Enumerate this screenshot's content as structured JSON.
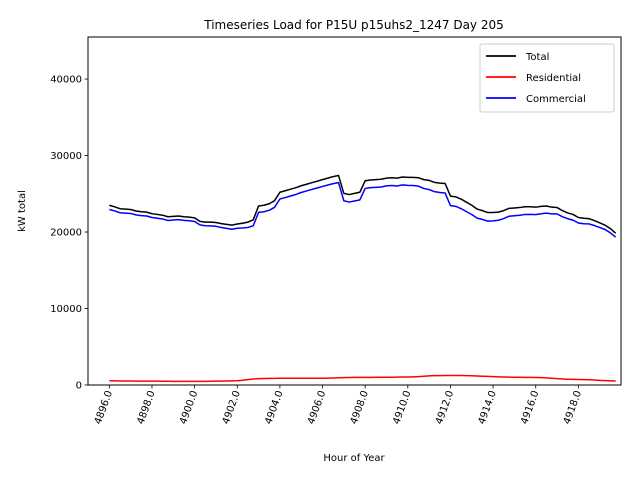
{
  "chart_data": {
    "type": "line",
    "title": "Timeseries Load for P15U p15uhs2_1247  Day 205",
    "xlabel": "Hour of Year",
    "ylabel": "kW total",
    "xlim": [
      4895.0,
      4920.0
    ],
    "ylim": [
      0,
      45500
    ],
    "xticks": [
      4896,
      4898,
      4900,
      4902,
      4904,
      4906,
      4908,
      4910,
      4912,
      4914,
      4916,
      4918
    ],
    "xtick_labels": [
      "4896.0",
      "4898.0",
      "4900.0",
      "4902.0",
      "4904.0",
      "4906.0",
      "4908.0",
      "4910.0",
      "4912.0",
      "4914.0",
      "4916.0",
      "4918.0"
    ],
    "yticks": [
      0,
      10000,
      20000,
      30000,
      40000
    ],
    "ytick_labels": [
      "0",
      "10000",
      "20000",
      "30000",
      "40000"
    ],
    "legend_position": "top-right",
    "x": [
      4896.0,
      4896.25,
      4896.5,
      4896.75,
      4897.0,
      4897.25,
      4897.5,
      4897.75,
      4898.0,
      4898.25,
      4898.5,
      4898.75,
      4899.0,
      4899.25,
      4899.5,
      4899.75,
      4900.0,
      4900.25,
      4900.5,
      4900.75,
      4901.0,
      4901.25,
      4901.5,
      4901.75,
      4902.0,
      4902.25,
      4902.5,
      4902.75,
      4903.0,
      4903.25,
      4903.5,
      4903.75,
      4904.0,
      4904.25,
      4904.5,
      4904.75,
      4905.0,
      4905.25,
      4905.5,
      4905.75,
      4906.0,
      4906.25,
      4906.5,
      4906.75,
      4907.0,
      4907.25,
      4907.5,
      4907.75,
      4908.0,
      4908.25,
      4908.5,
      4908.75,
      4909.0,
      4909.25,
      4909.5,
      4909.75,
      4910.0,
      4910.25,
      4910.5,
      4910.75,
      4911.0,
      4911.25,
      4911.5,
      4911.75,
      4912.0,
      4912.25,
      4912.5,
      4912.75,
      4913.0,
      4913.25,
      4913.5,
      4913.75,
      4914.0,
      4914.25,
      4914.5,
      4914.75,
      4915.0,
      4915.25,
      4915.5,
      4915.75,
      4916.0,
      4916.25,
      4916.5,
      4916.75,
      4917.0,
      4917.25,
      4917.5,
      4917.75,
      4918.0,
      4918.25,
      4918.5,
      4918.75,
      4919.0,
      4919.25,
      4919.5,
      4919.75
    ],
    "series": [
      {
        "name": "Total",
        "color": "#000000",
        "values": [
          23500,
          23300,
          23050,
          23000,
          22950,
          22750,
          22650,
          22600,
          22400,
          22300,
          22200,
          22000,
          22050,
          22100,
          22000,
          21950,
          21850,
          21400,
          21300,
          21300,
          21250,
          21100,
          21000,
          20900,
          21050,
          21150,
          21300,
          21600,
          23400,
          23500,
          23700,
          24100,
          25200,
          25400,
          25600,
          25800,
          26050,
          26250,
          26450,
          26650,
          26850,
          27050,
          27250,
          27400,
          25050,
          24900,
          25050,
          25200,
          26700,
          26800,
          26850,
          26900,
          27050,
          27100,
          27050,
          27200,
          27150,
          27150,
          27100,
          26850,
          26750,
          26500,
          26400,
          26350,
          24700,
          24600,
          24300,
          23900,
          23500,
          23000,
          22800,
          22550,
          22550,
          22600,
          22800,
          23100,
          23150,
          23200,
          23300,
          23300,
          23250,
          23350,
          23400,
          23250,
          23200,
          22800,
          22500,
          22300,
          21900,
          21800,
          21750,
          21500,
          21200,
          20900,
          20450,
          19850
        ]
      },
      {
        "name": "Residential",
        "color": "#ff0000",
        "values": [
          550,
          540,
          530,
          530,
          520,
          510,
          510,
          500,
          500,
          500,
          490,
          490,
          480,
          480,
          470,
          470,
          470,
          470,
          480,
          490,
          500,
          510,
          520,
          540,
          560,
          620,
          700,
          780,
          830,
          850,
          860,
          870,
          880,
          890,
          890,
          890,
          880,
          880,
          880,
          890,
          890,
          900,
          920,
          940,
          960,
          980,
          990,
          1000,
          1000,
          1000,
          1010,
          1010,
          1020,
          1020,
          1030,
          1040,
          1050,
          1070,
          1100,
          1150,
          1200,
          1220,
          1230,
          1240,
          1240,
          1240,
          1240,
          1230,
          1210,
          1180,
          1150,
          1120,
          1090,
          1060,
          1040,
          1030,
          1020,
          1010,
          1000,
          990,
          980,
          960,
          930,
          880,
          830,
          790,
          760,
          740,
          720,
          710,
          690,
          650,
          600,
          570,
          550,
          530
        ]
      },
      {
        "name": "Commercial",
        "color": "#0000ff",
        "values": [
          22950,
          22760,
          22520,
          22470,
          22430,
          22240,
          22140,
          22100,
          21900,
          21800,
          21710,
          21510,
          21570,
          21620,
          21530,
          21480,
          21380,
          20930,
          20820,
          20810,
          20750,
          20590,
          20480,
          20360,
          20490,
          20530,
          20600,
          20820,
          22570,
          22650,
          22840,
          23230,
          24320,
          24510,
          24710,
          24910,
          25170,
          25370,
          25570,
          25760,
          25960,
          26150,
          26330,
          26460,
          24090,
          23920,
          24060,
          24200,
          25700,
          25800,
          25840,
          25890,
          26030,
          26080,
          26020,
          26160,
          26100,
          26080,
          26000,
          25700,
          25550,
          25280,
          25170,
          25110,
          23460,
          23360,
          23060,
          22670,
          22290,
          21820,
          21650,
          21430,
          21460,
          21540,
          21760,
          22070,
          22130,
          22190,
          22300,
          22310,
          22270,
          22390,
          22470,
          22370,
          22370,
          22010,
          21740,
          21560,
          21180,
          21090,
          21060,
          20850,
          20600,
          20330,
          19900,
          19320
        ]
      }
    ]
  }
}
